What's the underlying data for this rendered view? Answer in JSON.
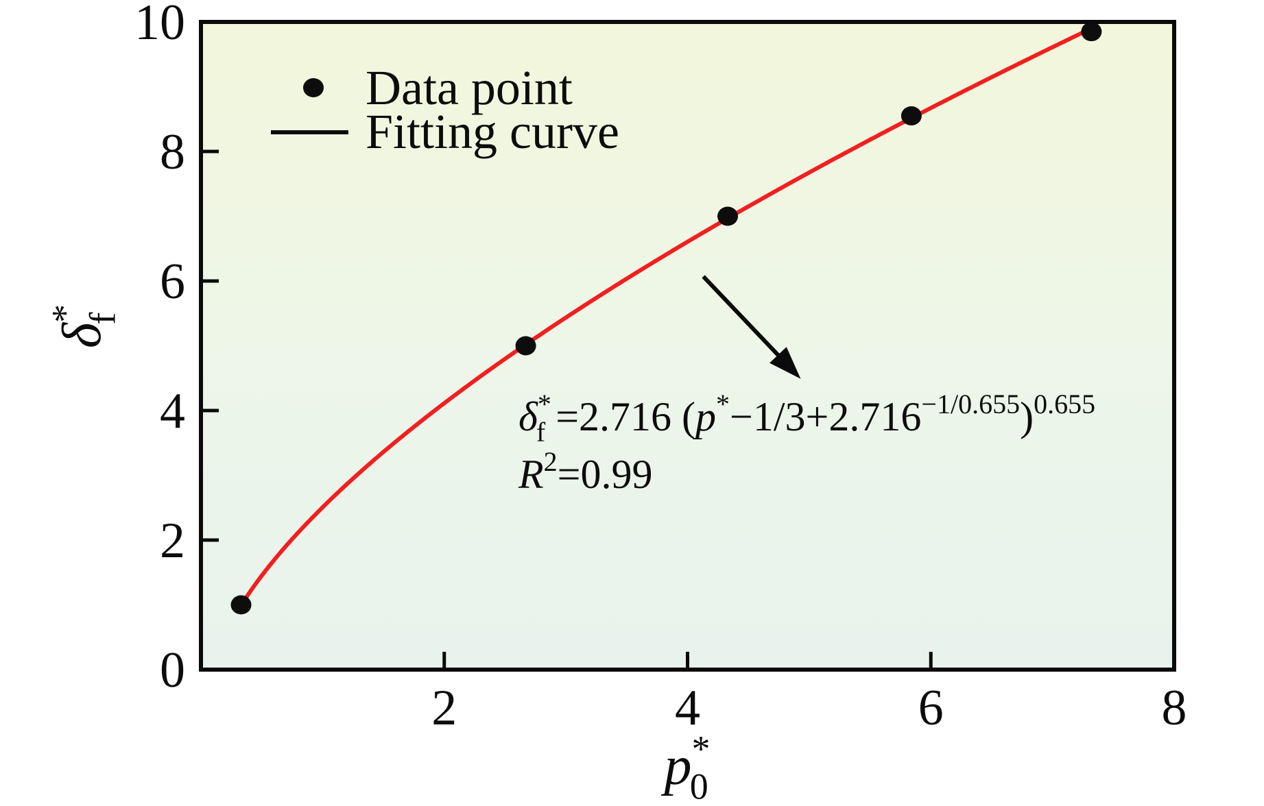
{
  "figure": {
    "background": "#ffffff",
    "frame_color": "#0a0a0a",
    "curve_color": "#f02020",
    "point_color": "#0d0d0d",
    "text_color": "#0c0c0c",
    "plot_bg_gradient": {
      "top": "#f2f6db",
      "mid": "#eef6e7",
      "bottom": "#e8f3ee"
    }
  },
  "chart_data": {
    "type": "scatter",
    "title": "",
    "xlim": [
      0,
      8
    ],
    "ylim": [
      0,
      10
    ],
    "x_ticks": [
      2,
      4,
      6,
      8
    ],
    "y_ticks": [
      0,
      2,
      4,
      6,
      8,
      10
    ],
    "grid": false,
    "xlabel_segments": [
      {
        "t": "p",
        "i": true
      },
      {
        "t": "*",
        "p": "sup"
      },
      {
        "t": "0",
        "p": "sub"
      }
    ],
    "ylabel_segments": [
      {
        "t": "δ",
        "i": true
      },
      {
        "t": "*",
        "p": "sup"
      },
      {
        "t": "f",
        "p": "sub"
      }
    ],
    "series": [
      {
        "name": "Data point",
        "type": "scatter",
        "points": [
          [
            0.33,
            1.0
          ],
          [
            2.67,
            5.0
          ],
          [
            4.33,
            7.0
          ],
          [
            5.84,
            8.55
          ],
          [
            7.32,
            9.85
          ]
        ]
      },
      {
        "name": "Fitting curve",
        "type": "line",
        "fit": {
          "a": 2.716,
          "b": 0.655,
          "x_shift": 0.33333,
          "x_start": 0.33,
          "x_end": 7.32
        },
        "r_squared": 0.99
      }
    ],
    "legend": {
      "position": "upper-left",
      "items": [
        {
          "label": "Data point",
          "marker": "dot"
        },
        {
          "label": "Fitting curve",
          "marker": "line"
        }
      ]
    },
    "annotation": {
      "equation_segments": [
        {
          "t": "δ",
          "i": true
        },
        {
          "t": "*",
          "p": "sup"
        },
        {
          "t": "f",
          "p": "sub"
        },
        {
          "t": " =2.716 ("
        },
        {
          "t": "p",
          "i": true
        },
        {
          "t": "*",
          "p": "sup"
        },
        {
          "t": "−1/3+2.716"
        },
        {
          "t": "−1/0.655",
          "p": "sup"
        },
        {
          "t": ")"
        },
        {
          "t": "0.655",
          "p": "sup"
        }
      ],
      "r2_segments": [
        {
          "t": "R",
          "i": true
        },
        {
          "t": "2",
          "p": "sup"
        },
        {
          "t": "=0.99"
        }
      ],
      "arrow": {
        "from_data": [
          4.13,
          6.07
        ],
        "to_data": [
          4.93,
          4.49
        ]
      }
    }
  }
}
